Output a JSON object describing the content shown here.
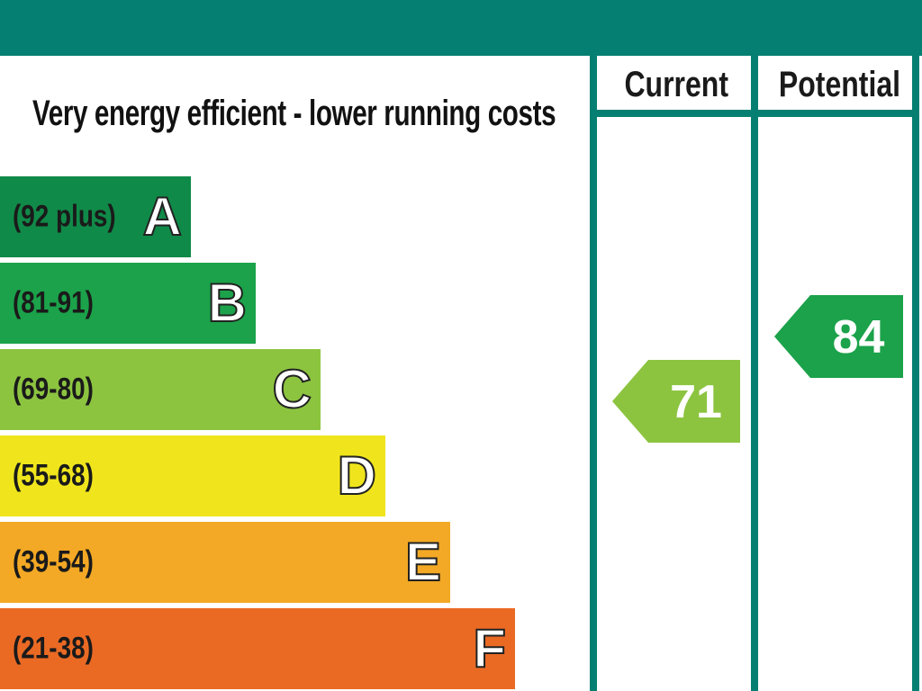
{
  "header_bar_color": "#057f71",
  "title": "Very energy efficient - lower running costs",
  "columns": {
    "current_label": "Current",
    "potential_label": "Potential"
  },
  "chart_data": {
    "type": "bar",
    "title": "Very energy efficient - lower running costs",
    "categories": [
      "A",
      "B",
      "C",
      "D",
      "E",
      "F"
    ],
    "ranges": [
      "(92 plus)",
      "(81-91)",
      "(69-80)",
      "(55-68)",
      "(39-54)",
      "(21-38)"
    ],
    "band_colors": [
      "#108a48",
      "#1ba24a",
      "#8cc440",
      "#f0e51c",
      "#f3a925",
      "#ea6a24"
    ],
    "current": {
      "label": "Current",
      "value": 71,
      "band": "C",
      "color": "#8cc440"
    },
    "potential": {
      "label": "Potential",
      "value": 84,
      "band": "B",
      "color": "#1ba24a"
    }
  }
}
